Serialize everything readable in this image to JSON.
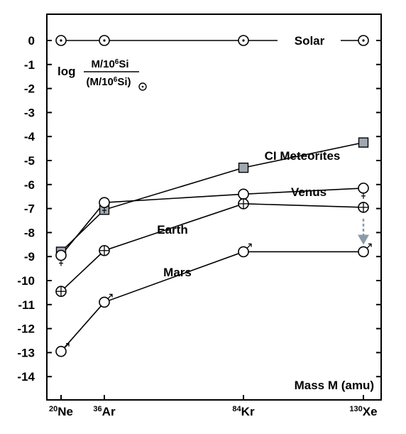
{
  "chart_data": {
    "type": "line",
    "categories": [
      {
        "mass": "20",
        "element": "Ne"
      },
      {
        "mass": "36",
        "element": "Ar"
      },
      {
        "mass": "84",
        "element": "Kr"
      },
      {
        "mass": "130",
        "element": "Xe"
      }
    ],
    "x": [
      20,
      36,
      84,
      130
    ],
    "xlabel": "Mass M (amu)",
    "ylabel": {
      "prefix": "log",
      "numerator": "M/10",
      "numerator_sup": "6",
      "numerator_tail": "Si",
      "denominator": "(M/10",
      "denominator_sup": "6",
      "denominator_tail": "Si)",
      "denominator_symbol": "sun-symbol"
    },
    "ylim": [
      -14.5,
      0.6
    ],
    "yticks": [
      0,
      -1,
      -2,
      -3,
      -4,
      -5,
      -6,
      -7,
      -8,
      -9,
      -10,
      -11,
      -12,
      -13,
      -14
    ],
    "ytick_labels": [
      "0",
      "-1",
      "-2",
      "-3",
      "-4",
      "-5",
      "-6",
      "-7",
      "-8",
      "-9",
      "-10",
      "-11",
      "-12",
      "-13",
      "-14"
    ],
    "grid": false,
    "series": [
      {
        "name": "Solar",
        "marker": "sun-symbol",
        "values": [
          0,
          0,
          0,
          0
        ]
      },
      {
        "name": "CI Meteorites",
        "marker": "square",
        "color": "#9fa8b0",
        "values": [
          -8.8,
          -7.05,
          -5.3,
          -4.25
        ]
      },
      {
        "name": "Venus",
        "marker": "venus-symbol",
        "values": [
          -8.95,
          -6.75,
          -6.4,
          -6.15
        ]
      },
      {
        "name": "Earth",
        "marker": "earth-symbol",
        "values": [
          -10.45,
          -8.75,
          -6.8,
          -6.95
        ]
      },
      {
        "name": "Mars",
        "marker": "mars-symbol",
        "values": [
          -12.95,
          -10.9,
          -8.8,
          -8.8
        ]
      }
    ],
    "annotations": [
      {
        "type": "dashed-arrow",
        "color": "#8a9aa6",
        "x": 130,
        "y_from": -6.95,
        "y_to": -8.8
      }
    ]
  }
}
